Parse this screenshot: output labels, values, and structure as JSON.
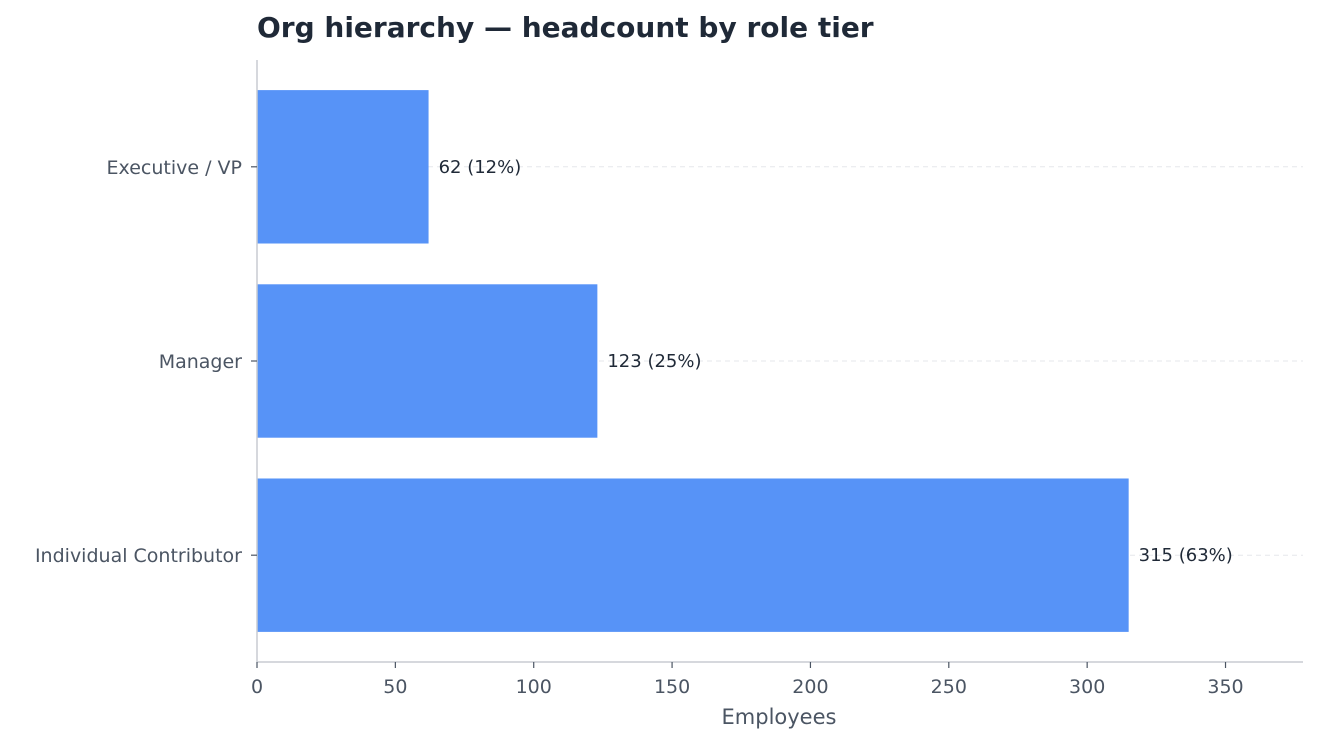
{
  "chart_data": {
    "type": "bar",
    "orientation": "horizontal",
    "title": "Org hierarchy — headcount by role tier",
    "xlabel": "Employees",
    "ylabel": "",
    "categories": [
      "Executive / VP",
      "Manager",
      "Individual Contributor"
    ],
    "values": [
      62,
      123,
      315
    ],
    "data_labels": [
      "62 (12%)",
      "123 (25%)",
      "315 (63%)"
    ],
    "xlim": [
      0,
      378
    ],
    "xticks": [
      0,
      50,
      100,
      150,
      200,
      250,
      300,
      350
    ],
    "grid": "horizontal dashed at category centers",
    "legend": "none",
    "colors": {
      "bar": "#5793f7",
      "title": "#1f2937",
      "axis_text": "#4b5563",
      "axis_line": "#c8ccd2",
      "grid": "#e5e7eb",
      "data_label": "#1f2937"
    }
  }
}
